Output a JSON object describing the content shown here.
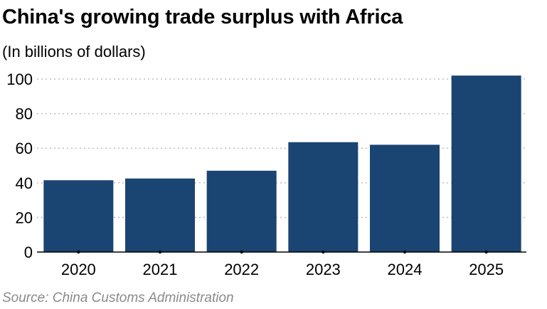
{
  "chart_data": {
    "type": "bar",
    "title": "China's growing trade surplus with Africa",
    "subtitle": "(In billions of dollars)",
    "source": "Source: China Customs Administration",
    "categories": [
      "2020",
      "2021",
      "2022",
      "2023",
      "2024",
      "2025"
    ],
    "values": [
      41.5,
      42.5,
      47,
      63.5,
      62,
      102
    ],
    "ylim": [
      0,
      100
    ],
    "yticks": [
      "0",
      "20",
      "40",
      "60",
      "80",
      "100"
    ],
    "ytick_values": [
      0,
      20,
      40,
      60,
      80,
      100
    ],
    "grid": true,
    "colors": {
      "bar": "#1a4472",
      "grid": "#bdbdbd",
      "axis": "#000000"
    }
  }
}
